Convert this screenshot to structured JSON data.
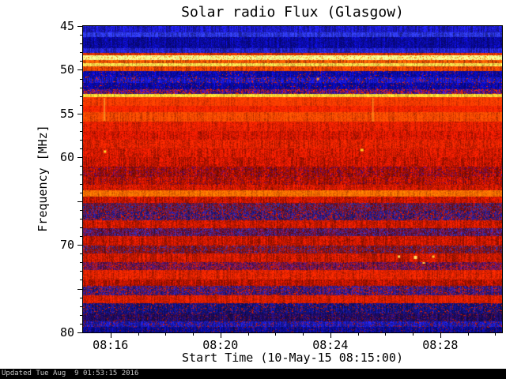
{
  "footer": {
    "updated": "Updated Tue Aug  9 01:53:15 2016"
  },
  "chart_data": {
    "type": "heatmap",
    "title": "Solar radio Flux (Glasgow)",
    "xlabel": "Start Time (10-May-15 08:15:00)",
    "ylabel": "Frequency [MHz]",
    "x_start_time": "08:15:00",
    "x_range_minutes": [
      0,
      15.25
    ],
    "x_minor_every": 1,
    "x_ticks": [
      {
        "m": 1,
        "label": "08:16"
      },
      {
        "m": 5,
        "label": "08:20"
      },
      {
        "m": 9,
        "label": "08:24"
      },
      {
        "m": 13,
        "label": "08:28"
      }
    ],
    "y_range_mhz": [
      45,
      80
    ],
    "y_inverted": true,
    "grid": false,
    "legend": "none",
    "y_ticks": [
      {
        "f": 45,
        "label": "45"
      },
      {
        "f": 50,
        "label": "50"
      },
      {
        "f": 55,
        "label": "55"
      },
      {
        "f": 60,
        "label": "60"
      },
      {
        "f": 65,
        "label": ""
      },
      {
        "f": 70,
        "label": "70"
      },
      {
        "f": 75,
        "label": ""
      },
      {
        "f": 80,
        "label": "80"
      }
    ],
    "bands": [
      [
        45.0,
        45.7,
        "#1a1ac8",
        0.3,
        0.3
      ],
      [
        45.7,
        46.3,
        "#2a34e6",
        0.3,
        0.3
      ],
      [
        46.3,
        47.5,
        "#0a0aa0",
        0.25,
        0.35
      ],
      [
        47.5,
        48.05,
        "#2222cc",
        0.3,
        0.3
      ],
      [
        48.05,
        48.35,
        "#dd2e00",
        0.25,
        0.25
      ],
      [
        48.35,
        48.85,
        "#ffff8c",
        0.08,
        0.14,
        "#ff7000",
        0.12
      ],
      [
        48.85,
        49.25,
        "#ff5400",
        0.35,
        0.3
      ],
      [
        49.25,
        49.6,
        "#ffd44a",
        0.18,
        0.22
      ],
      [
        49.6,
        50.1,
        "#f04400",
        0.25,
        0.28
      ],
      [
        50.1,
        50.9,
        "#0b0baa",
        0.25,
        0.32,
        "#c42000",
        0.05
      ],
      [
        50.9,
        51.5,
        "#1616c4",
        0.3,
        0.32,
        "#c42000",
        0.1
      ],
      [
        51.5,
        52.2,
        "#0909a2",
        0.25,
        0.32,
        "#b81800",
        0.07
      ],
      [
        52.2,
        52.75,
        "#3a1090",
        0.3,
        0.32,
        "#cc2200",
        0.28
      ],
      [
        52.75,
        53.15,
        "#ffd232",
        0.14,
        0.18
      ],
      [
        53.15,
        54.1,
        "#ff3a00",
        0.16,
        0.2
      ],
      [
        54.1,
        54.8,
        "#ff2600",
        0.16,
        0.22
      ],
      [
        54.8,
        55.9,
        "#ff4600",
        0.2,
        0.24
      ],
      [
        55.9,
        57.0,
        "#e82000",
        0.2,
        0.26
      ],
      [
        57.0,
        58.0,
        "#d81800",
        0.22,
        0.3
      ],
      [
        58.0,
        59.0,
        "#e32100",
        0.2,
        0.26
      ],
      [
        59.0,
        60.0,
        "#d91a00",
        0.22,
        0.3
      ],
      [
        60.0,
        61.1,
        "#cc1600",
        0.24,
        0.32
      ],
      [
        61.1,
        62.2,
        "#a81000",
        0.26,
        0.36,
        "#4c0a66",
        0.16
      ],
      [
        62.2,
        63.1,
        "#ba1300",
        0.24,
        0.32,
        "#400a55",
        0.09
      ],
      [
        63.1,
        63.8,
        "#d01900",
        0.22,
        0.3
      ],
      [
        63.8,
        64.5,
        "#ff6c00",
        0.16,
        0.22
      ],
      [
        64.5,
        65.2,
        "#cc1600",
        0.22,
        0.32
      ],
      [
        65.2,
        66.1,
        "#7e1022",
        0.26,
        0.36,
        "#222a8c",
        0.3
      ],
      [
        66.1,
        67.2,
        "#2a1a80",
        0.26,
        0.36,
        "#b01600",
        0.3
      ],
      [
        67.2,
        68.1,
        "#cc1900",
        0.22,
        0.3
      ],
      [
        68.1,
        69.0,
        "#6e1034",
        0.26,
        0.36,
        "#2a2aa4",
        0.26
      ],
      [
        69.0,
        70.1,
        "#c61700",
        0.22,
        0.3
      ],
      [
        70.1,
        71.0,
        "#8e1212",
        0.26,
        0.36,
        "#2a2a94",
        0.2
      ],
      [
        71.0,
        72.0,
        "#c91900",
        0.24,
        0.3
      ],
      [
        72.0,
        72.9,
        "#571460",
        0.26,
        0.36,
        "#b01600",
        0.3
      ],
      [
        72.9,
        74.0,
        "#e22200",
        0.2,
        0.26
      ],
      [
        74.0,
        74.7,
        "#b61400",
        0.24,
        0.32
      ],
      [
        74.7,
        75.8,
        "#2e1a86",
        0.26,
        0.36,
        "#b01600",
        0.26
      ],
      [
        75.8,
        76.7,
        "#da1d00",
        0.2,
        0.26
      ],
      [
        76.7,
        77.8,
        "#12127c",
        0.26,
        0.36,
        "#b01600",
        0.13
      ],
      [
        77.8,
        78.7,
        "#1e0b64",
        0.28,
        0.36,
        "#941200",
        0.09
      ],
      [
        78.7,
        79.4,
        "#1a1ab4",
        0.28,
        0.32,
        "#a41400",
        0.13
      ],
      [
        79.4,
        80.0,
        "#0b0b92",
        0.28,
        0.32,
        "#941200",
        0.07
      ]
    ],
    "streaks": [
      {
        "m": 0.78,
        "f0": 53.2,
        "f1": 55.8,
        "c": "rgba(255,200,60,0.55)",
        "w": 2
      },
      {
        "m": 10.55,
        "f0": 53.2,
        "f1": 55.9,
        "c": "rgba(255,190,50,0.50)",
        "w": 2
      }
    ],
    "features": [
      {
        "m": 0.8,
        "f": 59.35,
        "c": "#ffdd30",
        "w": 3,
        "h": 3
      },
      {
        "m": 10.15,
        "f": 59.2,
        "c": "#ffcc20",
        "w": 4,
        "h": 3
      },
      {
        "m": 8.55,
        "f": 51.05,
        "c": "#ff9020",
        "w": 3,
        "h": 3
      },
      {
        "m": 11.5,
        "f": 71.3,
        "c": "#ffe050",
        "w": 3,
        "h": 3
      },
      {
        "m": 12.1,
        "f": 71.45,
        "c": "#ffdf60",
        "w": 4,
        "h": 4
      },
      {
        "m": 12.75,
        "f": 71.3,
        "c": "#ffc830",
        "w": 3,
        "h": 3
      },
      {
        "m": 12.4,
        "f": 72.1,
        "c": "#ffd040",
        "w": 3,
        "h": 2
      }
    ]
  }
}
